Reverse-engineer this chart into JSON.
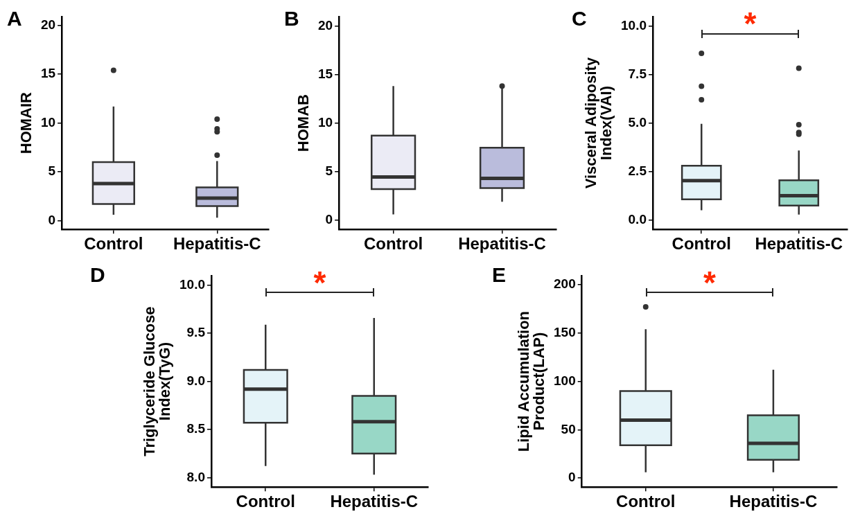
{
  "chart_data": [
    {
      "type": "box",
      "title": "A",
      "ylabel": "HOMAIR",
      "categories": [
        "Control",
        "Hepatitis-C"
      ],
      "colors": [
        "#ebebf5",
        "#babcdc"
      ],
      "ylim": [
        -0.9,
        20.9
      ],
      "yticks": [
        0,
        5,
        10,
        15,
        20
      ],
      "grid": false,
      "legend": false,
      "boxes": [
        {
          "low": 0.6,
          "q1": 1.7,
          "median": 3.8,
          "q3": 6.0,
          "high": 11.7,
          "outliers": [
            15.4
          ]
        },
        {
          "low": 0.3,
          "q1": 1.5,
          "median": 2.3,
          "q3": 3.4,
          "high": 6.1,
          "outliers": [
            6.7,
            9.1,
            9.4,
            10.4
          ]
        }
      ]
    },
    {
      "type": "box",
      "title": "B",
      "ylabel": "HOMAB",
      "categories": [
        "Control",
        "Hepatitis-C"
      ],
      "colors": [
        "#ebebf5",
        "#babcdc"
      ],
      "ylim": [
        -0.95,
        20.95
      ],
      "yticks": [
        0,
        5,
        10,
        15,
        20
      ],
      "grid": false,
      "legend": false,
      "boxes": [
        {
          "low": 0.6,
          "q1": 3.2,
          "median": 4.45,
          "q3": 8.7,
          "high": 13.8
        },
        {
          "low": 1.9,
          "q1": 3.3,
          "median": 4.3,
          "q3": 7.45,
          "high": 13.8,
          "outliers": [
            13.8
          ]
        }
      ]
    },
    {
      "type": "box",
      "title": "C",
      "ylabel": "Visceral Adiposity Index(VAI)",
      "categories": [
        "Control",
        "Hepatitis-C"
      ],
      "colors": [
        "#e4f3f8",
        "#98d7c6"
      ],
      "ylim": [
        -0.49,
        10.49
      ],
      "yticks": [
        {
          "value": 0,
          "label": "0.0"
        },
        {
          "value": 2.5,
          "label": "2.5"
        },
        {
          "value": 5,
          "label": "5.0"
        },
        {
          "value": 7.5,
          "label": "7.5"
        },
        {
          "value": 10,
          "label": "10.0"
        }
      ],
      "grid": false,
      "legend": false,
      "boxes": [
        {
          "low": 0.5,
          "q1": 1.06,
          "median": 2.03,
          "q3": 2.8,
          "high": 4.96,
          "outliers": [
            6.2,
            6.9,
            8.6
          ]
        },
        {
          "low": 0.28,
          "q1": 0.74,
          "median": 1.25,
          "q3": 2.05,
          "high": 3.58,
          "outliers": [
            4.42,
            4.51,
            4.91,
            7.83
          ]
        }
      ],
      "annotations": [
        "*"
      ]
    },
    {
      "type": "box",
      "title": "D",
      "ylabel": "Triglyceride Glucose Index(TyG)",
      "categories": [
        "Control",
        "Hepatitis-C"
      ],
      "colors": [
        "#e4f3f8",
        "#98d7c6"
      ],
      "ylim": [
        7.9,
        10.1
      ],
      "yticks": [
        {
          "value": 8,
          "label": "8.0"
        },
        {
          "value": 8.5,
          "label": "8.5"
        },
        {
          "value": 9,
          "label": "9.0"
        },
        {
          "value": 9.5,
          "label": "9.5"
        },
        {
          "value": 10,
          "label": "10.0"
        }
      ],
      "grid": false,
      "legend": false,
      "boxes": [
        {
          "low": 8.12,
          "q1": 8.57,
          "median": 8.92,
          "q3": 9.12,
          "high": 9.59
        },
        {
          "low": 8.03,
          "q1": 8.25,
          "median": 8.58,
          "q3": 8.85,
          "high": 9.66
        }
      ],
      "annotations": [
        "*"
      ]
    },
    {
      "type": "box",
      "title": "E",
      "ylabel": "Lipid Accumulation Product(LAP)",
      "categories": [
        "Control",
        "Hepatitis-C"
      ],
      "colors": [
        "#e4f3f8",
        "#98d7c6"
      ],
      "ylim": [
        -9.3,
        209.3
      ],
      "yticks": [
        0,
        50,
        100,
        150,
        200
      ],
      "grid": false,
      "legend": false,
      "boxes": [
        {
          "low": 6,
          "q1": 34,
          "median": 60,
          "q3": 90,
          "high": 154,
          "outliers": [
            177
          ]
        },
        {
          "low": 6,
          "q1": 19,
          "median": 36,
          "q3": 65,
          "high": 112
        }
      ],
      "annotations": [
        "*"
      ]
    }
  ]
}
